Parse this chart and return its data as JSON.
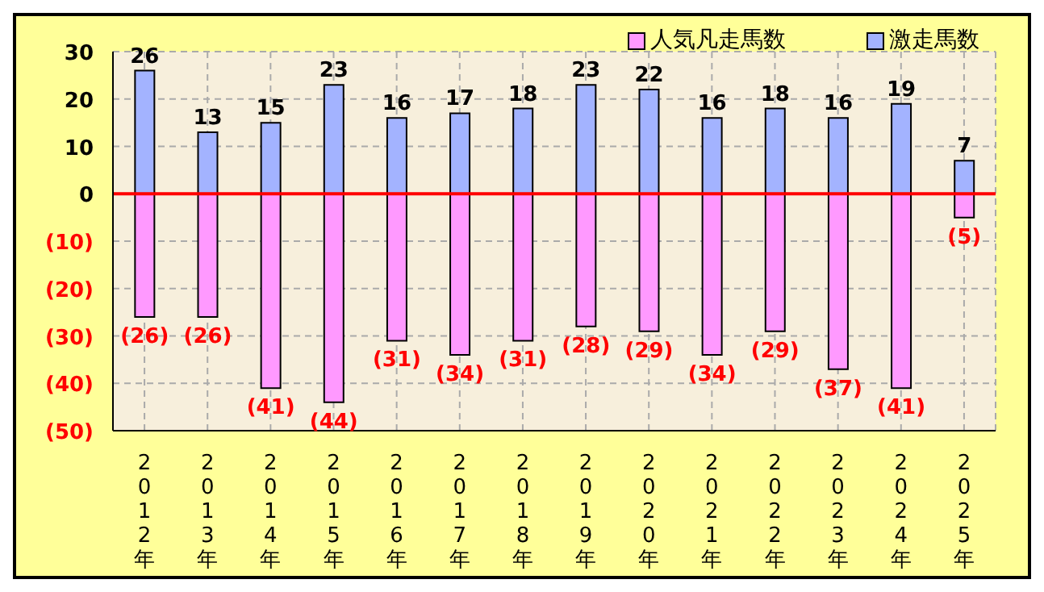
{
  "chart_data": {
    "type": "bar",
    "stacked": true,
    "categories": [
      "2012年",
      "2013年",
      "2014年",
      "2015年",
      "2016年",
      "2017年",
      "2018年",
      "2019年",
      "2020年",
      "2021年",
      "2022年",
      "2023年",
      "2024年",
      "2025年"
    ],
    "series": [
      {
        "name": "人気凡走馬数",
        "color": "#ff99ff",
        "values": [
          -26,
          -26,
          -41,
          -44,
          -31,
          -34,
          -31,
          -28,
          -29,
          -34,
          -29,
          -37,
          -41,
          -5
        ],
        "value_labels": [
          "(26)",
          "(26)",
          "(41)",
          "(44)",
          "(31)",
          "(34)",
          "(31)",
          "(28)",
          "(29)",
          "(34)",
          "(29)",
          "(37)",
          "(41)",
          "(5)"
        ]
      },
      {
        "name": "激走馬数",
        "color": "#a3b3ff",
        "values": [
          26,
          13,
          15,
          23,
          16,
          17,
          18,
          23,
          22,
          16,
          18,
          16,
          19,
          7
        ],
        "value_labels": [
          "26",
          "13",
          "15",
          "23",
          "16",
          "17",
          "18",
          "23",
          "22",
          "16",
          "18",
          "16",
          "19",
          "7"
        ]
      }
    ],
    "ylim": [
      -50,
      30
    ],
    "yticks": [
      30,
      20,
      10,
      0,
      {
        "value": -10,
        "label": "(10)"
      },
      {
        "value": -20,
        "label": "(20)"
      },
      {
        "value": -30,
        "label": "(30)"
      },
      {
        "value": -40,
        "label": "(40)"
      },
      {
        "value": -50,
        "label": "(50)"
      }
    ],
    "ref_lines": [
      {
        "axis": "y",
        "value": 0,
        "color": "#ff0000"
      }
    ],
    "grid": true,
    "legend": "top right"
  }
}
